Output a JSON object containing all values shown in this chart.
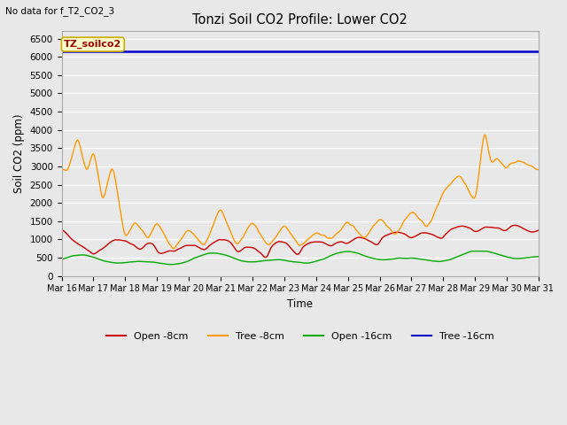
{
  "title": "Tonzi Soil CO2 Profile: Lower CO2",
  "no_data_text": "No data for f_T2_CO2_3",
  "ylabel": "Soil CO2 (ppm)",
  "xlabel": "Time",
  "annotation": "TZ_soilco2",
  "ylim": [
    0,
    6700
  ],
  "yticks": [
    0,
    500,
    1000,
    1500,
    2000,
    2500,
    3000,
    3500,
    4000,
    4500,
    5000,
    5500,
    6000,
    6500
  ],
  "x_tick_labels": [
    "Mar 16",
    "Mar 17",
    "Mar 18",
    "Mar 19",
    "Mar 20",
    "Mar 21",
    "Mar 22",
    "Mar 23",
    "Mar 24",
    "Mar 25",
    "Mar 26",
    "Mar 27",
    "Mar 28",
    "Mar 29",
    "Mar 30",
    "Mar 31"
  ],
  "colors": {
    "open_8cm": "#cc0000",
    "tree_8cm": "#ff9900",
    "open_16cm": "#00aa00",
    "tree_16cm": "#0000cc"
  },
  "legend": [
    "Open -8cm",
    "Tree -8cm",
    "Open -16cm",
    "Tree -16cm"
  ],
  "fig_bg_color": "#e8e8e8",
  "plot_bg_color": "#e8e8e8",
  "tree_16cm_value": 6150,
  "n_points": 480,
  "figsize": [
    6.4,
    4.8
  ],
  "dpi": 100
}
